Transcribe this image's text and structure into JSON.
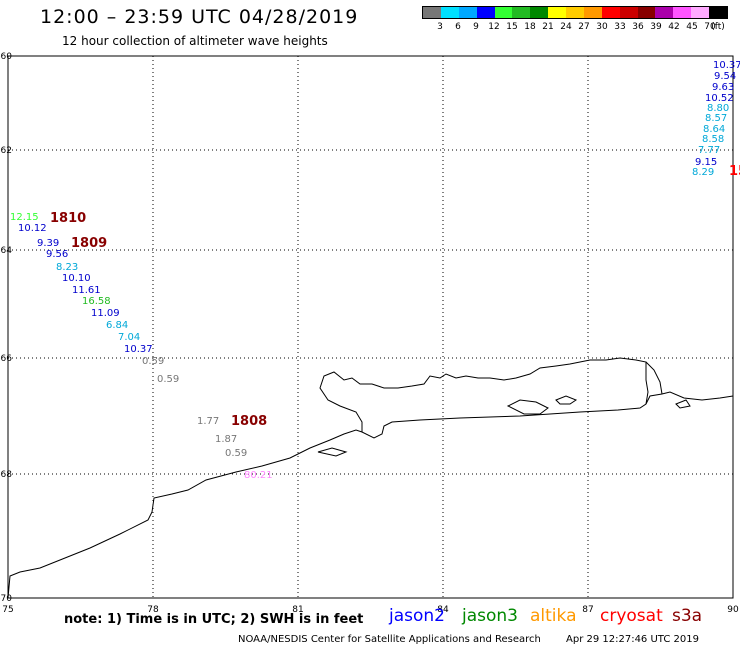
{
  "header": {
    "title": "12:00 – 23:59 UTC 04/28/2019",
    "subtitle": "12 hour collection of altimeter wave heights"
  },
  "legend": {
    "unit": "(ft)",
    "ticks": [
      "3",
      "6",
      "9",
      "12",
      "15",
      "18",
      "21",
      "24",
      "27",
      "30",
      "33",
      "36",
      "39",
      "42",
      "45",
      "70"
    ],
    "colors": [
      "#777777",
      "#00e0ff",
      "#00a8ff",
      "#0000ff",
      "#33ff33",
      "#22bb22",
      "#008800",
      "#ffff00",
      "#ffcc00",
      "#ff9900",
      "#ff0000",
      "#cc0000",
      "#880000",
      "#aa00aa",
      "#ff55ff",
      "#ffaaff",
      "#000000"
    ]
  },
  "map": {
    "lon_labels": [
      "75",
      "78",
      "81",
      "84",
      "87",
      "90"
    ],
    "lat_labels": [
      "-60",
      "-62",
      "-64",
      "-66",
      "-68",
      "-70"
    ],
    "track_labels": [
      {
        "id": "1810",
        "color": "#880000"
      },
      {
        "id": "1809",
        "color": "#880000"
      },
      {
        "id": "1808",
        "color": "#880000"
      },
      {
        "id": "15",
        "color": "#ff0000"
      }
    ],
    "swh_values": [
      {
        "v": "10.37",
        "color": "#0000cc"
      },
      {
        "v": "9.54",
        "color": "#0000cc"
      },
      {
        "v": "9.63",
        "color": "#0000cc"
      },
      {
        "v": "10.52",
        "color": "#0000cc"
      },
      {
        "v": "8.80",
        "color": "#00a8d8"
      },
      {
        "v": "8.57",
        "color": "#00a8d8"
      },
      {
        "v": "8.64",
        "color": "#00a8d8"
      },
      {
        "v": "8.58",
        "color": "#00a8d8"
      },
      {
        "v": "7.77",
        "color": "#00a8d8"
      },
      {
        "v": "9.15",
        "color": "#0000cc"
      },
      {
        "v": "8.29",
        "color": "#00a8d8"
      },
      {
        "v": "12.15",
        "color": "#33ff33"
      },
      {
        "v": "10.12",
        "color": "#0000cc"
      },
      {
        "v": "9.39",
        "color": "#0000cc"
      },
      {
        "v": "9.56",
        "color": "#0000cc"
      },
      {
        "v": "8.23",
        "color": "#00a8d8"
      },
      {
        "v": "10.10",
        "color": "#0000cc"
      },
      {
        "v": "11.61",
        "color": "#0000cc"
      },
      {
        "v": "16.58",
        "color": "#22bb22"
      },
      {
        "v": "11.09",
        "color": "#0000cc"
      },
      {
        "v": "6.84",
        "color": "#00a8d8"
      },
      {
        "v": "7.04",
        "color": "#00a8d8"
      },
      {
        "v": "10.37",
        "color": "#0000cc"
      },
      {
        "v": "0.59",
        "color": "#777777"
      },
      {
        "v": "0.59",
        "color": "#777777"
      },
      {
        "v": "1.77",
        "color": "#777777"
      },
      {
        "v": "1.87",
        "color": "#777777"
      },
      {
        "v": "0.59",
        "color": "#777777"
      },
      {
        "v": "80.21",
        "color": "#ff88ff"
      }
    ]
  },
  "footer": {
    "note": "note: 1) Time is in UTC; 2) SWH is in feet",
    "satellites": [
      {
        "name": "jason2",
        "color": "#0000ff"
      },
      {
        "name": "jason3",
        "color": "#008800"
      },
      {
        "name": "altika",
        "color": "#ff9900"
      },
      {
        "name": "cryosat",
        "color": "#ff0000"
      },
      {
        "name": "s3a",
        "color": "#880000"
      }
    ],
    "credit": "NOAA/NESDIS Center for Satellite Applications and Research",
    "timestamp": "Apr 29 12:27:46 UTC 2019"
  }
}
